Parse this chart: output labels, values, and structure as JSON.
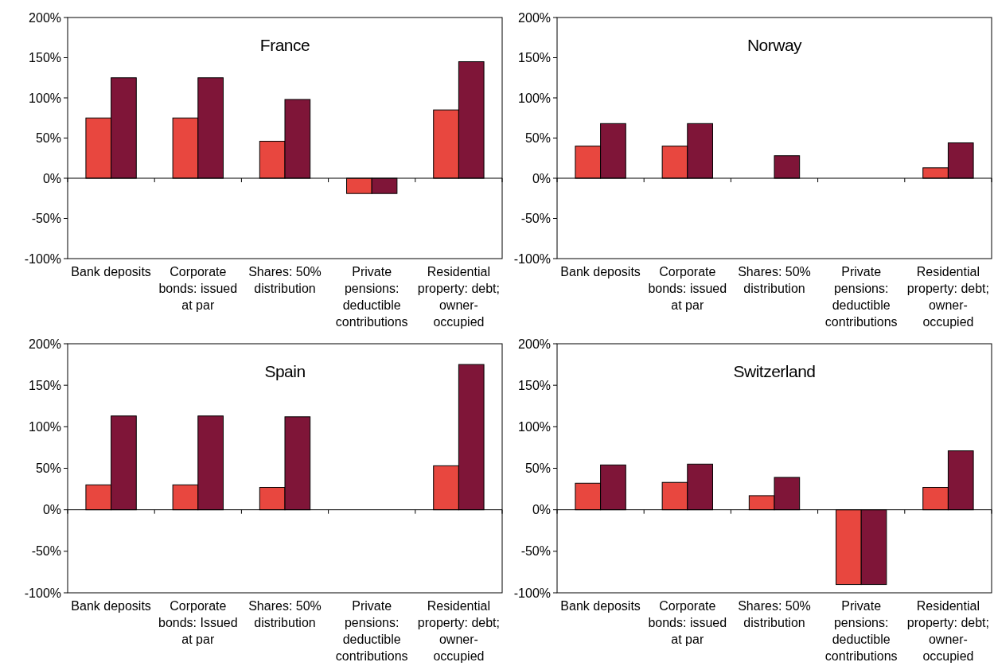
{
  "chart_data": [
    {
      "type": "bar",
      "title": "France",
      "categories": [
        "Bank deposits",
        "Corporate bonds: issued at par",
        "Shares: 50% distribution",
        "Private pensions: deductible contributions",
        "Residential property: debt; owner-occupied"
      ],
      "series": [
        {
          "color": "#e8473f",
          "values": [
            75,
            75,
            46,
            -19,
            85
          ]
        },
        {
          "color": "#7f1538",
          "values": [
            125,
            125,
            98,
            -19,
            145
          ]
        }
      ],
      "ylim": [
        -100,
        200
      ],
      "yticks": [
        {
          "value": -100,
          "label": "-100%"
        },
        {
          "value": -50,
          "label": "-50%"
        },
        {
          "value": 0,
          "label": "0%"
        },
        {
          "value": 50,
          "label": "50%"
        },
        {
          "value": 100,
          "label": "100%"
        },
        {
          "value": 150,
          "label": "150%"
        },
        {
          "value": 200,
          "label": "200%"
        }
      ]
    },
    {
      "type": "bar",
      "title": "Norway",
      "categories": [
        "Bank deposits",
        "Corporate bonds: issued at par",
        "Shares: 50% distribution",
        "Private pensions: deductible contributions",
        "Residential property: debt; owner-occupied"
      ],
      "series": [
        {
          "color": "#e8473f",
          "values": [
            40,
            40,
            0,
            0,
            13
          ]
        },
        {
          "color": "#7f1538",
          "values": [
            68,
            68,
            28,
            0,
            44
          ]
        }
      ],
      "ylim": [
        -100,
        200
      ],
      "yticks": [
        {
          "value": -100,
          "label": "-100%"
        },
        {
          "value": -50,
          "label": "-50%"
        },
        {
          "value": 0,
          "label": "0%"
        },
        {
          "value": 50,
          "label": "50%"
        },
        {
          "value": 100,
          "label": "100%"
        },
        {
          "value": 150,
          "label": "150%"
        },
        {
          "value": 200,
          "label": "200%"
        }
      ]
    },
    {
      "type": "bar",
      "title": "Spain",
      "categories": [
        "Bank deposits",
        "Corporate bonds: Issued at par",
        "Shares: 50% distribution",
        "Private pensions: deductible contributions",
        "Residential property: debt; owner-occupied"
      ],
      "series": [
        {
          "color": "#e8473f",
          "values": [
            30,
            30,
            27,
            0,
            53
          ]
        },
        {
          "color": "#7f1538",
          "values": [
            113,
            113,
            112,
            0,
            175
          ]
        }
      ],
      "ylim": [
        -100,
        200
      ],
      "yticks": [
        {
          "value": -100,
          "label": "-100%"
        },
        {
          "value": -50,
          "label": "-50%"
        },
        {
          "value": 0,
          "label": "0%"
        },
        {
          "value": 50,
          "label": "50%"
        },
        {
          "value": 100,
          "label": "100%"
        },
        {
          "value": 150,
          "label": "150%"
        },
        {
          "value": 200,
          "label": "200%"
        }
      ]
    },
    {
      "type": "bar",
      "title": "Switzerland",
      "categories": [
        "Bank deposits",
        "Corporate bonds: issued at par",
        "Shares: 50% distribution",
        "Private pensions: deductible contributions",
        "Residential property: debt; owner-occupied"
      ],
      "series": [
        {
          "color": "#e8473f",
          "values": [
            32,
            33,
            17,
            -90,
            27
          ]
        },
        {
          "color": "#7f1538",
          "values": [
            54,
            55,
            39,
            -90,
            71
          ]
        }
      ],
      "ylim": [
        -100,
        200
      ],
      "yticks": [
        {
          "value": -100,
          "label": "-100%"
        },
        {
          "value": -50,
          "label": "-50%"
        },
        {
          "value": 0,
          "label": "0%"
        },
        {
          "value": 50,
          "label": "50%"
        },
        {
          "value": 100,
          "label": "100%"
        },
        {
          "value": 150,
          "label": "150%"
        },
        {
          "value": 200,
          "label": "200%"
        }
      ]
    }
  ]
}
